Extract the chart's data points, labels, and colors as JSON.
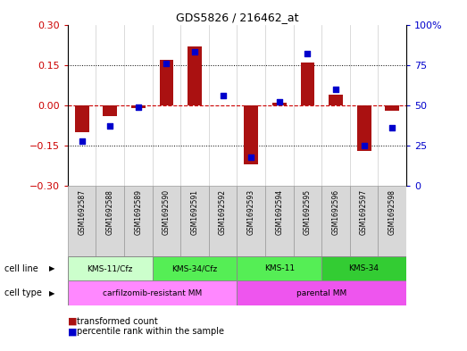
{
  "title": "GDS5826 / 216462_at",
  "samples": [
    "GSM1692587",
    "GSM1692588",
    "GSM1692589",
    "GSM1692590",
    "GSM1692591",
    "GSM1692592",
    "GSM1692593",
    "GSM1692594",
    "GSM1692595",
    "GSM1692596",
    "GSM1692597",
    "GSM1692598"
  ],
  "transformed_count": [
    -0.1,
    -0.04,
    -0.01,
    0.17,
    0.22,
    0.0,
    -0.22,
    0.01,
    0.16,
    0.04,
    -0.17,
    -0.02
  ],
  "percentile_rank": [
    28,
    37,
    49,
    76,
    83,
    56,
    18,
    52,
    82,
    60,
    25,
    36
  ],
  "ylim_left": [
    -0.3,
    0.3
  ],
  "ylim_right": [
    0,
    100
  ],
  "yticks_left": [
    -0.3,
    -0.15,
    0,
    0.15,
    0.3
  ],
  "yticks_right": [
    0,
    25,
    50,
    75,
    100
  ],
  "cell_line_groups": [
    {
      "label": "KMS-11/Cfz",
      "start": 0,
      "end": 3,
      "color": "#ccffcc"
    },
    {
      "label": "KMS-34/Cfz",
      "start": 3,
      "end": 6,
      "color": "#55ee55"
    },
    {
      "label": "KMS-11",
      "start": 6,
      "end": 9,
      "color": "#55ee55"
    },
    {
      "label": "KMS-34",
      "start": 9,
      "end": 12,
      "color": "#33cc33"
    }
  ],
  "cell_type_groups": [
    {
      "label": "carfilzomib-resistant MM",
      "start": 0,
      "end": 6,
      "color": "#ff88ff"
    },
    {
      "label": "parental MM",
      "start": 6,
      "end": 12,
      "color": "#ee55ee"
    }
  ],
  "bar_color": "#aa1111",
  "dot_color": "#0000cc",
  "zero_line_color": "#cc0000",
  "grid_color": "#000000",
  "bg_color": "#ffffff",
  "plot_bg_color": "#ffffff",
  "left_label_color": "#cc0000",
  "right_label_color": "#0000cc",
  "gsm_bg_color": "#d8d8d8",
  "gsm_border_color": "#999999"
}
